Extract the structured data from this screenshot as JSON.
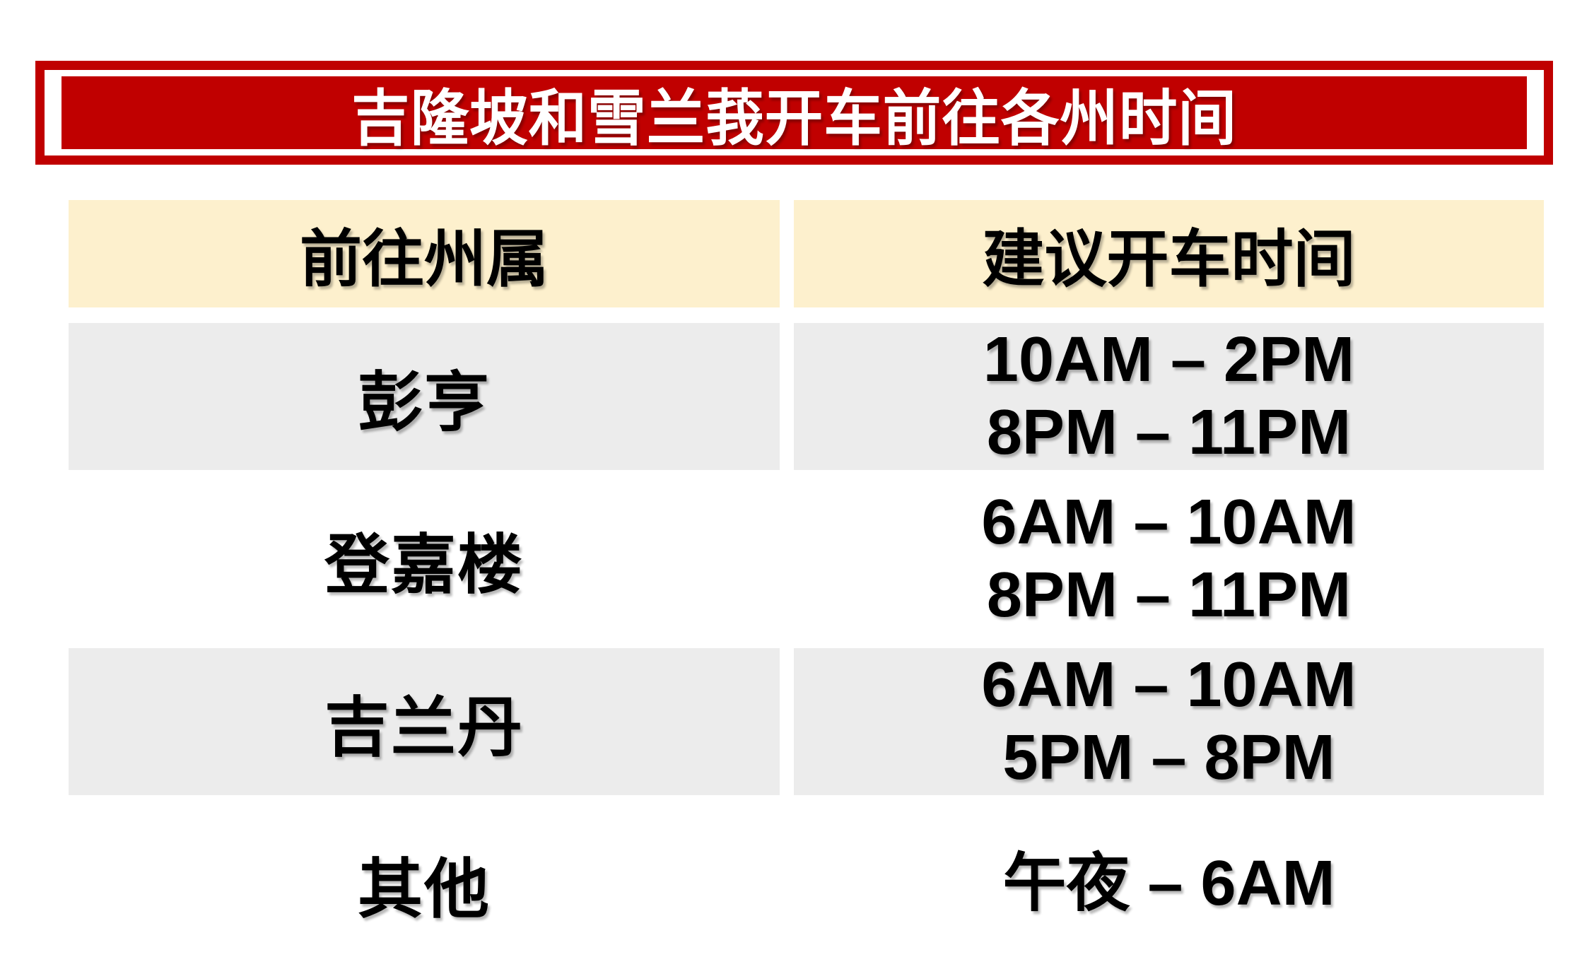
{
  "title": {
    "text": "吉隆坡和雪兰莪开车前往各州时间"
  },
  "colors": {
    "banner_red": "#C00000",
    "header_bg": "#FDF0CD",
    "row_alt_bg": "#ECECEC",
    "title_text": "#FFFFFF",
    "body_text": "#000000"
  },
  "table": {
    "headers": [
      {
        "label": "前往州属"
      },
      {
        "label": "建议开车时间"
      }
    ],
    "rows": [
      {
        "state": "彭亨",
        "times": [
          "10AM – 2PM",
          "8PM – 11PM"
        ]
      },
      {
        "state": "登嘉楼",
        "times": [
          "6AM – 10AM",
          "8PM – 11PM"
        ]
      },
      {
        "state": "吉兰丹",
        "times": [
          "6AM – 10AM",
          "5PM – 8PM"
        ]
      },
      {
        "state": "其他",
        "times": [
          "午夜 – 6AM"
        ]
      }
    ]
  },
  "chart_data": {
    "type": "table",
    "title": "吉隆坡和雪兰莪开车前往各州时间",
    "columns": [
      "前往州属",
      "建议开车时间"
    ],
    "rows": [
      [
        "彭亨",
        "10AM – 2PM / 8PM – 11PM"
      ],
      [
        "登嘉楼",
        "6AM – 10AM / 8PM – 11PM"
      ],
      [
        "吉兰丹",
        "6AM – 10AM / 5PM – 8PM"
      ],
      [
        "其他",
        "午夜 – 6AM"
      ]
    ],
    "legend_position": "none",
    "grid": false
  }
}
